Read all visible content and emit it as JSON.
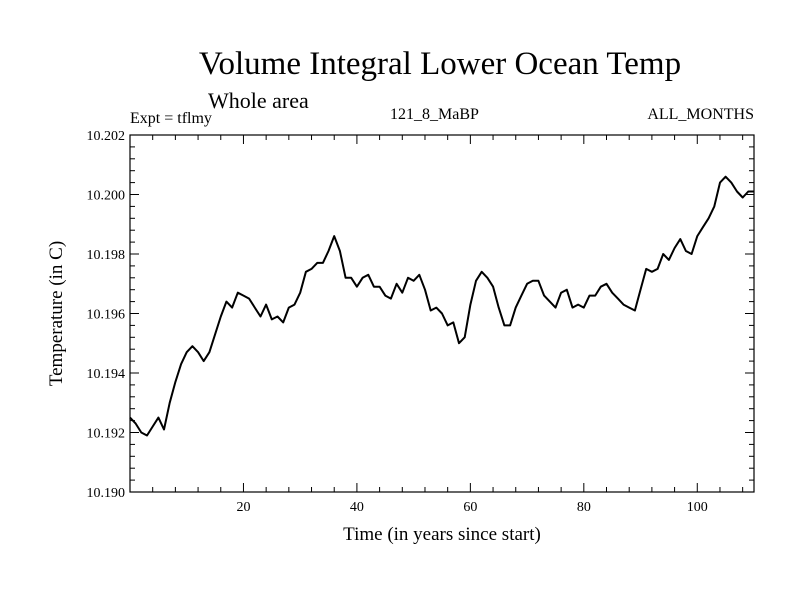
{
  "chart_data": {
    "type": "line",
    "title": "Volume Integral Lower Ocean Temp",
    "subtitle": "Whole area",
    "annotations": {
      "left": "Expt = tflmy",
      "center": "121_8_MaBP",
      "right": "ALL_MONTHS"
    },
    "xlabel": "Time (in years since start)",
    "ylabel": "Temperature (in C)",
    "xlim": [
      0,
      110
    ],
    "ylim": [
      10.19,
      10.202
    ],
    "xticks": [
      20,
      40,
      60,
      80,
      100
    ],
    "xtick_labels": [
      "20",
      "40",
      "60",
      "80",
      "100"
    ],
    "yticks": [
      10.19,
      10.192,
      10.194,
      10.196,
      10.198,
      10.2,
      10.202
    ],
    "ytick_labels": [
      "10.190",
      "10.192",
      "10.194",
      "10.196",
      "10.198",
      "10.200",
      "10.202"
    ],
    "grid": false,
    "series": [
      {
        "name": "Volume Integral Lower Ocean Temp",
        "x": [
          0,
          1,
          2,
          3,
          4,
          5,
          6,
          7,
          8,
          9,
          10,
          11,
          12,
          13,
          14,
          15,
          16,
          17,
          18,
          19,
          20,
          21,
          22,
          23,
          24,
          25,
          26,
          27,
          28,
          29,
          30,
          31,
          32,
          33,
          34,
          35,
          36,
          37,
          38,
          39,
          40,
          41,
          42,
          43,
          44,
          45,
          46,
          47,
          48,
          49,
          50,
          51,
          52,
          53,
          54,
          55,
          56,
          57,
          58,
          59,
          60,
          61,
          62,
          63,
          64,
          65,
          66,
          67,
          68,
          69,
          70,
          71,
          72,
          73,
          74,
          75,
          76,
          77,
          78,
          79,
          80,
          81,
          82,
          83,
          84,
          85,
          86,
          87,
          88,
          89,
          90,
          91,
          92,
          93,
          94,
          95,
          96,
          97,
          98,
          99,
          100,
          101,
          102,
          103,
          104,
          105,
          106,
          107,
          108,
          109,
          110
        ],
        "y": [
          10.1925,
          10.1923,
          10.192,
          10.1919,
          10.1922,
          10.1925,
          10.1921,
          10.193,
          10.1937,
          10.1943,
          10.1947,
          10.1949,
          10.1947,
          10.1944,
          10.1947,
          10.1953,
          10.1959,
          10.1964,
          10.1962,
          10.1967,
          10.1966,
          10.1965,
          10.1962,
          10.1959,
          10.1963,
          10.1958,
          10.1959,
          10.1957,
          10.1962,
          10.1963,
          10.1967,
          10.1974,
          10.1975,
          10.1977,
          10.1977,
          10.1981,
          10.1986,
          10.1981,
          10.1972,
          10.1972,
          10.1969,
          10.1972,
          10.1973,
          10.1969,
          10.1969,
          10.1966,
          10.1965,
          10.197,
          10.1967,
          10.1972,
          10.1971,
          10.1973,
          10.1968,
          10.1961,
          10.1962,
          10.196,
          10.1956,
          10.1957,
          10.195,
          10.1952,
          10.1963,
          10.1971,
          10.1974,
          10.1972,
          10.1969,
          10.1962,
          10.1956,
          10.1956,
          10.1962,
          10.1966,
          10.197,
          10.1971,
          10.1971,
          10.1966,
          10.1964,
          10.1962,
          10.1967,
          10.1968,
          10.1962,
          10.1963,
          10.1962,
          10.1966,
          10.1966,
          10.1969,
          10.197,
          10.1967,
          10.1965,
          10.1963,
          10.1962,
          10.1961,
          10.1968,
          10.1975,
          10.1974,
          10.1975,
          10.198,
          10.1978,
          10.1982,
          10.1985,
          10.1981,
          10.198,
          10.1986,
          10.1989,
          10.1992,
          10.1996,
          10.2004,
          10.2006,
          10.2004,
          10.2001,
          10.1999,
          10.2001,
          10.2001
        ]
      }
    ]
  }
}
